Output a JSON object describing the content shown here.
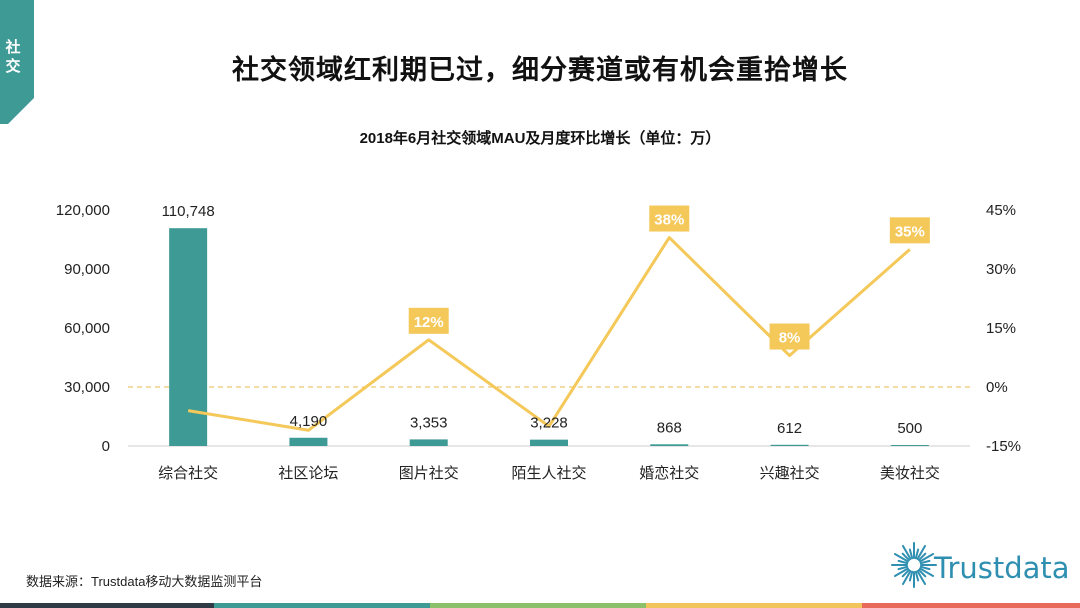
{
  "section_tab": {
    "label": "社交",
    "color": "#3e9a95"
  },
  "main_title": "社交领域红利期已过，细分赛道或有机会重拾增长",
  "chart_title": "2018年6月社交领域MAU及月度环比增长（单位：万）",
  "source": "数据来源：Trustdata移动大数据监测平台",
  "logo": {
    "text": "Trustdata",
    "icon": "sunburst-icon",
    "color": "#2f8fb1"
  },
  "footer_colors": [
    "#2e3b46",
    "#3e9a95",
    "#8dc06a",
    "#f2c55c",
    "#e8685a"
  ],
  "colors": {
    "bar": "#3e9a95",
    "line": "#f4c859",
    "label_bg": "#f4c859",
    "zero_line": "#e8b84a",
    "axis": "#cccccc"
  },
  "chart_data": {
    "type": "bar+line",
    "categories": [
      "综合社交",
      "社区论坛",
      "图片社交",
      "陌生人社交",
      "婚恋社交",
      "兴趣社交",
      "美妆社交"
    ],
    "series": [
      {
        "name": "MAU",
        "type": "bar",
        "axis": "left",
        "values": [
          110748,
          4190,
          3353,
          3228,
          868,
          612,
          500
        ],
        "labels": [
          "110,748",
          "4,190",
          "3,353",
          "3,228",
          "868",
          "612",
          "500"
        ]
      },
      {
        "name": "月度环比增长",
        "type": "line",
        "axis": "right",
        "values": [
          -6,
          -11,
          12,
          -10,
          38,
          8,
          35
        ],
        "labels": [
          "",
          "",
          "12%",
          "",
          "38%",
          "8%",
          "35%"
        ]
      }
    ],
    "y_left": {
      "min": 0,
      "max": 120000,
      "ticks": [
        0,
        30000,
        60000,
        90000,
        120000
      ],
      "tick_labels": [
        "0",
        "30,000",
        "60,000",
        "90,000",
        "120,000"
      ]
    },
    "y_right": {
      "min": -15,
      "max": 45,
      "ticks": [
        -15,
        0,
        15,
        30,
        45
      ],
      "tick_labels": [
        "-15%",
        "0%",
        "15%",
        "30%",
        "45%"
      ]
    },
    "zero_reference": 0,
    "grid": false,
    "legend": "none"
  }
}
